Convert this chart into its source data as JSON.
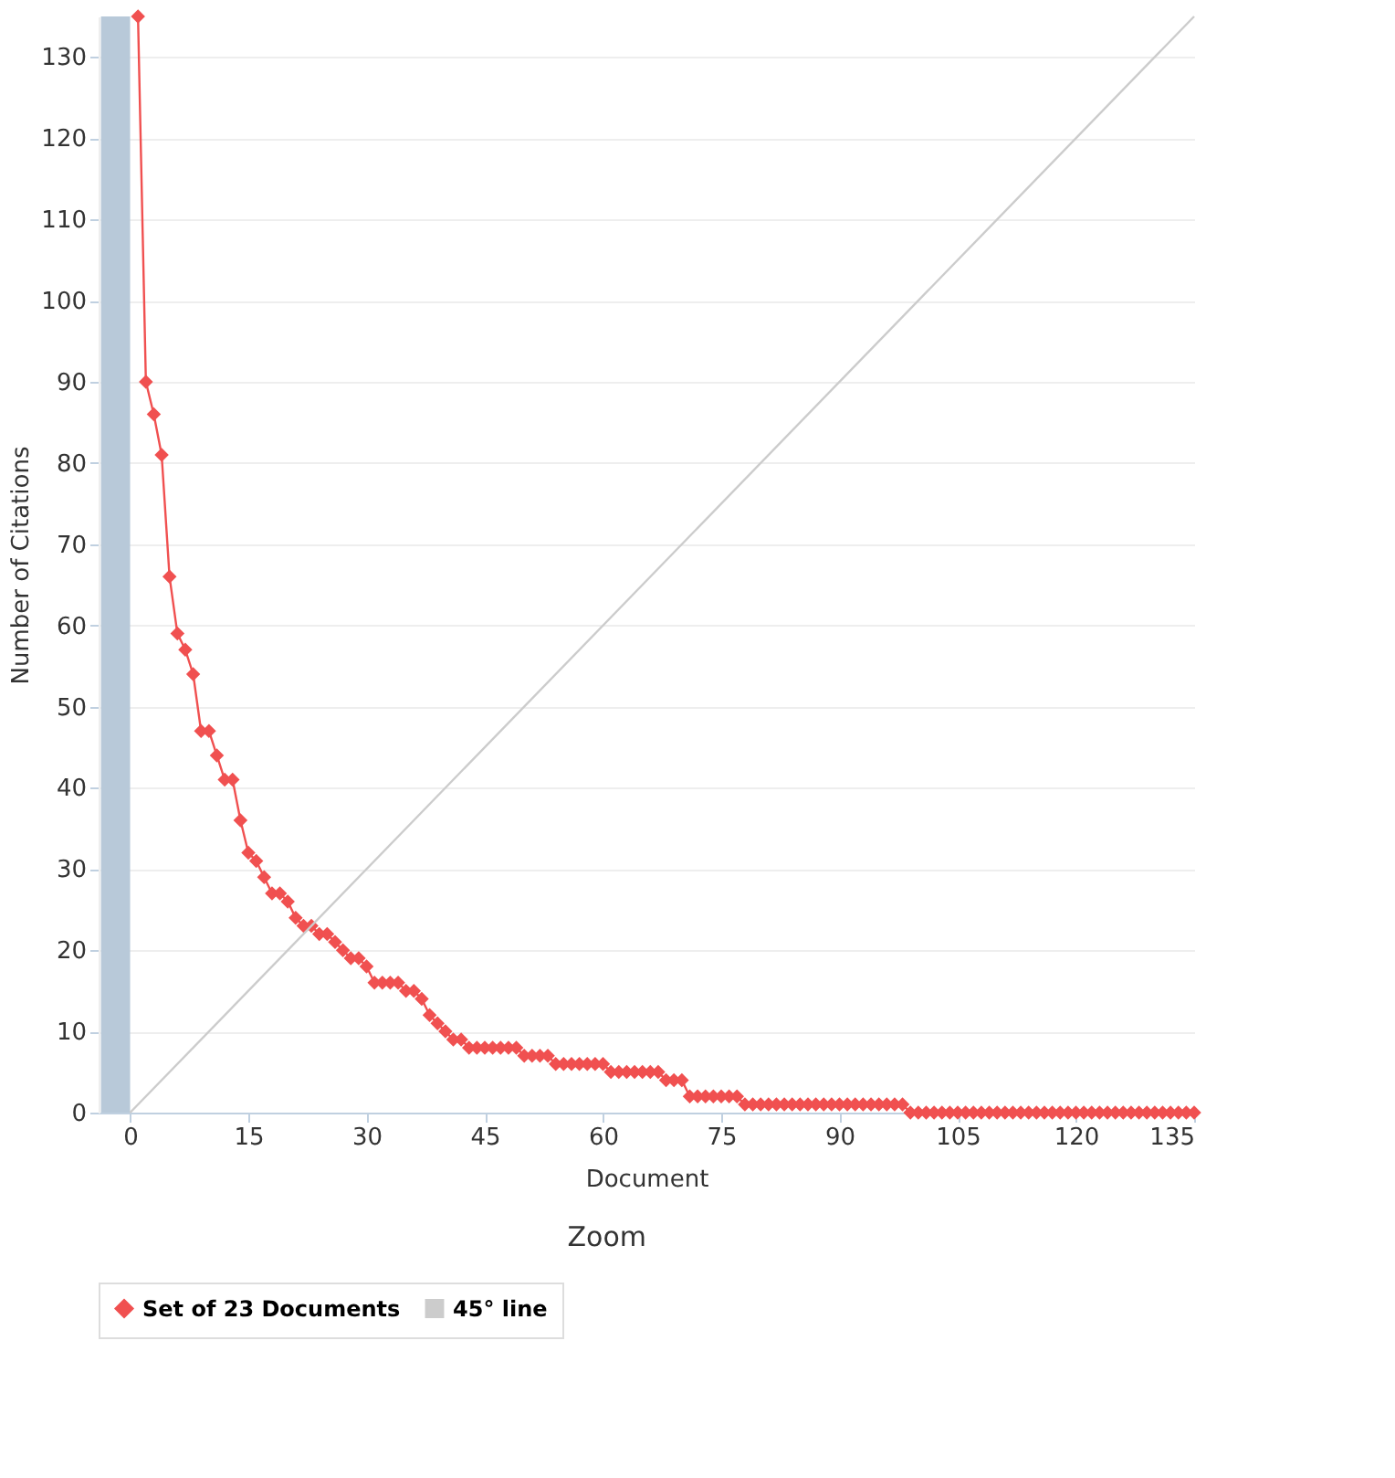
{
  "chart_data": {
    "type": "line",
    "xlabel": "Document",
    "ylabel": "Number of Citations",
    "xlim": [
      -4,
      135
    ],
    "xticks": [
      0,
      15,
      30,
      45,
      60,
      75,
      90,
      105,
      120,
      135
    ],
    "ylim": [
      0,
      135
    ],
    "yticks": [
      0,
      10,
      20,
      30,
      40,
      50,
      60,
      70,
      80,
      90,
      100,
      110,
      120,
      130
    ],
    "grid": "y",
    "legend": "bottom",
    "marker": "diamond",
    "line_style": "solid",
    "annotations": [
      "Zoom"
    ],
    "bands": [
      {
        "axis": "x",
        "from": -3.7,
        "to": 0,
        "color": "#b8c9d9"
      }
    ],
    "series": [
      {
        "name": "Set of 23 Documents",
        "color": "#f05050",
        "x": [
          1,
          2,
          3,
          4,
          5,
          6,
          7,
          8,
          9,
          10,
          11,
          12,
          13,
          14,
          15,
          16,
          17,
          18,
          19,
          20,
          21,
          22,
          23,
          24,
          25,
          26,
          27,
          28,
          29,
          30,
          31,
          32,
          33,
          34,
          35,
          36,
          37,
          38,
          39,
          40,
          41,
          42,
          43,
          44,
          45,
          46,
          47,
          48,
          49,
          50,
          51,
          52,
          53,
          54,
          55,
          56,
          57,
          58,
          59,
          60,
          61,
          62,
          63,
          64,
          65,
          66,
          67,
          68,
          69,
          70,
          71,
          72,
          73,
          74,
          75,
          76,
          77,
          78,
          79,
          80,
          81,
          82,
          83,
          84,
          85,
          86,
          87,
          88,
          89,
          90,
          91,
          92,
          93,
          94,
          95,
          96,
          97,
          98,
          99,
          100,
          101,
          102,
          103,
          104,
          105,
          106,
          107,
          108,
          109,
          110,
          111,
          112,
          113,
          114,
          115,
          116,
          117,
          118,
          119,
          120,
          121,
          122,
          123,
          124,
          125,
          126,
          127,
          128,
          129,
          130,
          131,
          132,
          133,
          134,
          135
        ],
        "values": [
          135,
          90,
          86,
          81,
          66,
          59,
          57,
          54,
          47,
          47,
          44,
          41,
          41,
          36,
          32,
          31,
          29,
          27,
          27,
          26,
          24,
          23,
          23,
          22,
          22,
          21,
          20,
          19,
          19,
          18,
          16,
          16,
          16,
          16,
          15,
          15,
          14,
          12,
          11,
          10,
          9,
          9,
          8,
          8,
          8,
          8,
          8,
          8,
          8,
          7,
          7,
          7,
          7,
          6,
          6,
          6,
          6,
          6,
          6,
          6,
          5,
          5,
          5,
          5,
          5,
          5,
          5,
          4,
          4,
          4,
          2,
          2,
          2,
          2,
          2,
          2,
          2,
          1,
          1,
          1,
          1,
          1,
          1,
          1,
          1,
          1,
          1,
          1,
          1,
          1,
          1,
          1,
          1,
          1,
          1,
          1,
          1,
          1,
          0,
          0,
          0,
          0,
          0,
          0,
          0,
          0,
          0,
          0,
          0,
          0,
          0,
          0,
          0,
          0,
          0,
          0,
          0,
          0,
          0,
          0,
          0,
          0,
          0,
          0,
          0,
          0,
          0,
          0,
          0,
          0,
          0,
          0,
          0,
          0,
          0
        ]
      },
      {
        "name": "45° line",
        "color": "#cccccc",
        "marker": "none",
        "x": [
          0,
          135
        ],
        "values": [
          0,
          135
        ]
      }
    ]
  }
}
